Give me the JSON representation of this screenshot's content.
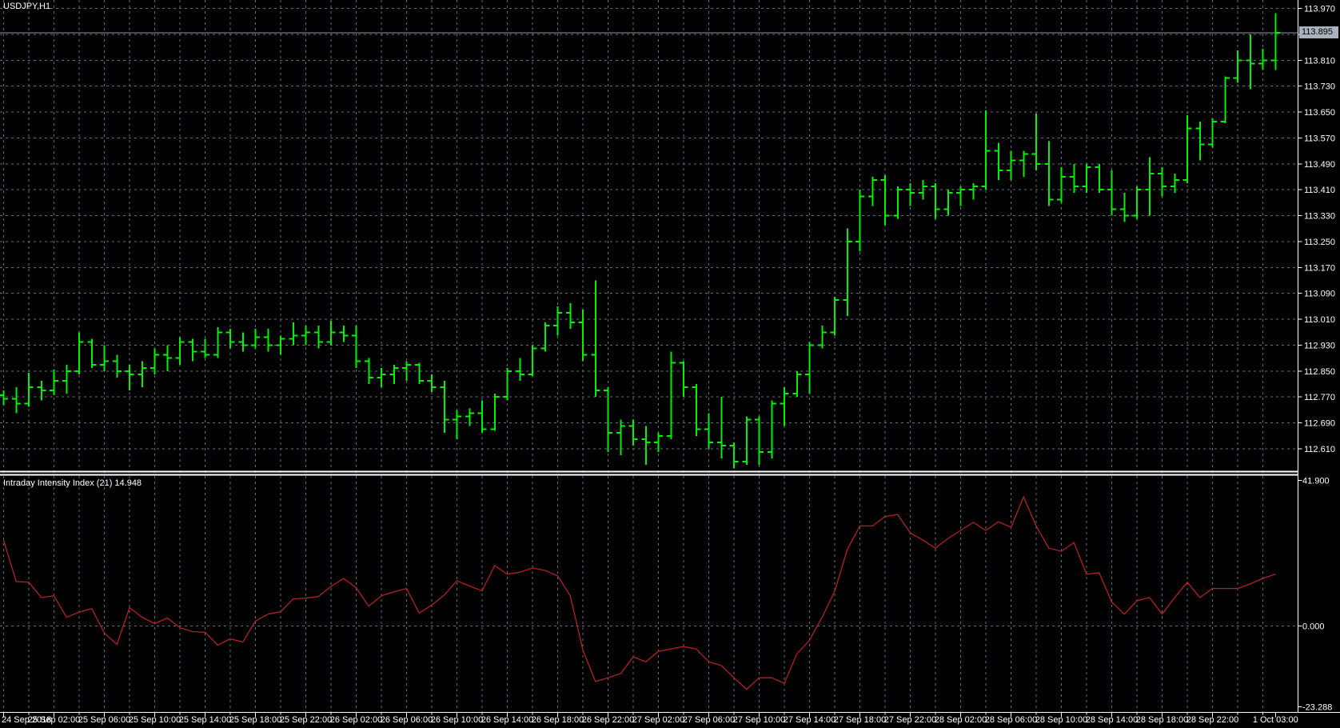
{
  "window": {
    "symbol_label": "USDJPY,H1",
    "indicator_label": "Intraday Intensity Index (21) 14.948"
  },
  "colors": {
    "background": "#000000",
    "grid": "#5f6e7d",
    "bars": "#00f000",
    "indicator_line": "#b22222",
    "axis_line": "#ffffff",
    "axis_text": "#ffffff",
    "bid_line": "#8f99a3",
    "separator": "#ffffff",
    "badge_bg": "#a9b2bd",
    "badge_text": "#000000"
  },
  "chart_data": {
    "type": "ohlc-bars",
    "title": "USDJPY,H1",
    "symbol": "USDJPY",
    "timeframe": "H1",
    "grid": "dashed",
    "price_axis": {
      "bid": "113.895",
      "gridline_step": 0.08,
      "gridlines": [
        113.97,
        113.89,
        113.81,
        113.73,
        113.65,
        113.57,
        113.49,
        113.41,
        113.33,
        113.25,
        113.17,
        113.09,
        113.01,
        112.93,
        112.85,
        112.77,
        112.69,
        112.61
      ]
    },
    "time_axis": {
      "labels": [
        {
          "text": "24 Sep 2018",
          "bar": 0
        },
        {
          "text": "25 Sep 02:00",
          "bar": 4
        },
        {
          "text": "25 Sep 06:00",
          "bar": 8
        },
        {
          "text": "25 Sep 10:00",
          "bar": 12
        },
        {
          "text": "25 Sep 14:00",
          "bar": 16
        },
        {
          "text": "25 Sep 18:00",
          "bar": 20
        },
        {
          "text": "25 Sep 22:00",
          "bar": 24
        },
        {
          "text": "26 Sep 02:00",
          "bar": 28
        },
        {
          "text": "26 Sep 06:00",
          "bar": 32
        },
        {
          "text": "26 Sep 10:00",
          "bar": 36
        },
        {
          "text": "26 Sep 14:00",
          "bar": 40
        },
        {
          "text": "26 Sep 18:00",
          "bar": 44
        },
        {
          "text": "26 Sep 22:00",
          "bar": 48
        },
        {
          "text": "27 Sep 02:00",
          "bar": 52
        },
        {
          "text": "27 Sep 06:00",
          "bar": 56
        },
        {
          "text": "27 Sep 10:00",
          "bar": 60
        },
        {
          "text": "27 Sep 14:00",
          "bar": 64
        },
        {
          "text": "27 Sep 18:00",
          "bar": 68
        },
        {
          "text": "27 Sep 22:00",
          "bar": 72
        },
        {
          "text": "28 Sep 02:00",
          "bar": 76
        },
        {
          "text": "28 Sep 06:00",
          "bar": 80
        },
        {
          "text": "28 Sep 10:00",
          "bar": 84
        },
        {
          "text": "28 Sep 14:00",
          "bar": 88
        },
        {
          "text": "28 Sep 18:00",
          "bar": 92
        },
        {
          "text": "28 Sep 22:00",
          "bar": 96
        },
        {
          "text": "1 Oct 03:00",
          "bar": 101
        }
      ]
    },
    "bars_ohlc": [
      [
        112.775,
        112.79,
        112.745,
        112.765
      ],
      [
        112.765,
        112.8,
        112.72,
        112.75
      ],
      [
        112.75,
        112.845,
        112.74,
        112.8
      ],
      [
        112.8,
        112.82,
        112.76,
        112.79
      ],
      [
        112.79,
        112.855,
        112.775,
        112.82
      ],
      [
        112.82,
        112.87,
        112.78,
        112.85
      ],
      [
        112.85,
        112.97,
        112.84,
        112.94
      ],
      [
        112.94,
        112.95,
        112.86,
        112.87
      ],
      [
        112.87,
        112.93,
        112.85,
        112.88
      ],
      [
        112.88,
        112.9,
        112.83,
        112.85
      ],
      [
        112.85,
        112.87,
        112.79,
        112.84
      ],
      [
        112.84,
        112.88,
        112.8,
        112.86
      ],
      [
        112.86,
        112.92,
        112.84,
        112.9
      ],
      [
        112.9,
        112.93,
        112.85,
        112.89
      ],
      [
        112.89,
        112.955,
        112.87,
        112.94
      ],
      [
        112.94,
        112.95,
        112.88,
        112.91
      ],
      [
        112.91,
        112.95,
        112.89,
        112.9
      ],
      [
        112.9,
        112.985,
        112.89,
        112.97
      ],
      [
        112.97,
        112.98,
        112.92,
        112.94
      ],
      [
        112.94,
        112.97,
        112.91,
        112.93
      ],
      [
        112.93,
        112.98,
        112.92,
        112.955
      ],
      [
        112.955,
        112.98,
        112.91,
        112.93
      ],
      [
        112.93,
        112.96,
        112.9,
        112.95
      ],
      [
        112.95,
        113.0,
        112.93,
        112.96
      ],
      [
        112.96,
        112.99,
        112.93,
        112.97
      ],
      [
        112.97,
        112.99,
        112.92,
        112.94
      ],
      [
        112.94,
        113.005,
        112.93,
        112.97
      ],
      [
        112.97,
        112.99,
        112.94,
        112.96
      ],
      [
        112.96,
        112.99,
        112.86,
        112.88
      ],
      [
        112.88,
        112.89,
        112.81,
        112.83
      ],
      [
        112.83,
        112.86,
        112.8,
        112.84
      ],
      [
        112.84,
        112.87,
        112.81,
        112.86
      ],
      [
        112.86,
        112.88,
        112.82,
        112.87
      ],
      [
        112.87,
        112.875,
        112.81,
        112.82
      ],
      [
        112.82,
        112.84,
        112.785,
        112.8
      ],
      [
        112.8,
        112.82,
        112.66,
        112.7
      ],
      [
        112.7,
        112.73,
        112.64,
        112.71
      ],
      [
        112.71,
        112.735,
        112.68,
        112.72
      ],
      [
        112.72,
        112.76,
        112.66,
        112.67
      ],
      [
        112.67,
        112.78,
        112.665,
        112.77
      ],
      [
        112.77,
        112.86,
        112.76,
        112.85
      ],
      [
        112.85,
        112.89,
        112.82,
        112.84
      ],
      [
        112.84,
        112.93,
        112.835,
        112.92
      ],
      [
        112.92,
        113.0,
        112.91,
        112.99
      ],
      [
        112.99,
        113.05,
        112.96,
        113.03
      ],
      [
        113.03,
        113.06,
        112.98,
        113.0
      ],
      [
        113.0,
        113.04,
        112.88,
        112.9
      ],
      [
        112.9,
        113.13,
        112.77,
        112.79
      ],
      [
        112.79,
        112.8,
        112.6,
        112.66
      ],
      [
        112.66,
        112.7,
        112.59,
        112.68
      ],
      [
        112.68,
        112.7,
        112.62,
        112.64
      ],
      [
        112.64,
        112.68,
        112.56,
        112.63
      ],
      [
        112.63,
        112.66,
        112.6,
        112.65
      ],
      [
        112.65,
        112.91,
        112.64,
        112.875
      ],
      [
        112.875,
        112.88,
        112.77,
        112.8
      ],
      [
        112.8,
        112.81,
        112.65,
        112.67
      ],
      [
        112.67,
        112.72,
        112.61,
        112.63
      ],
      [
        112.63,
        112.77,
        112.58,
        112.62
      ],
      [
        112.62,
        112.63,
        112.55,
        112.57
      ],
      [
        112.57,
        112.71,
        112.56,
        112.7
      ],
      [
        112.7,
        112.71,
        112.56,
        112.6
      ],
      [
        112.6,
        112.76,
        112.58,
        112.75
      ],
      [
        112.75,
        112.8,
        112.68,
        112.78
      ],
      [
        112.78,
        112.85,
        112.77,
        112.84
      ],
      [
        112.84,
        112.94,
        112.78,
        112.93
      ],
      [
        112.93,
        112.99,
        112.92,
        112.97
      ],
      [
        112.97,
        113.08,
        112.96,
        113.07
      ],
      [
        113.07,
        113.29,
        113.02,
        113.25
      ],
      [
        113.25,
        113.41,
        113.22,
        113.39
      ],
      [
        113.39,
        113.45,
        113.36,
        113.44
      ],
      [
        113.44,
        113.455,
        113.3,
        113.33
      ],
      [
        113.33,
        113.42,
        113.32,
        113.41
      ],
      [
        113.41,
        113.43,
        113.36,
        113.4
      ],
      [
        113.4,
        113.44,
        113.38,
        113.42
      ],
      [
        113.42,
        113.43,
        113.32,
        113.35
      ],
      [
        113.35,
        113.41,
        113.33,
        113.4
      ],
      [
        113.4,
        113.42,
        113.36,
        113.41
      ],
      [
        113.41,
        113.43,
        113.38,
        113.42
      ],
      [
        113.42,
        113.655,
        113.41,
        113.53
      ],
      [
        113.53,
        113.555,
        113.44,
        113.47
      ],
      [
        113.47,
        113.53,
        113.44,
        113.5
      ],
      [
        113.5,
        113.53,
        113.45,
        113.52
      ],
      [
        113.52,
        113.645,
        113.47,
        113.49
      ],
      [
        113.49,
        113.56,
        113.36,
        113.38
      ],
      [
        113.38,
        113.48,
        113.37,
        113.45
      ],
      [
        113.45,
        113.49,
        113.4,
        113.42
      ],
      [
        113.42,
        113.49,
        113.4,
        113.48
      ],
      [
        113.48,
        113.49,
        113.4,
        113.41
      ],
      [
        113.41,
        113.47,
        113.33,
        113.35
      ],
      [
        113.35,
        113.4,
        113.31,
        113.33
      ],
      [
        113.33,
        113.42,
        113.32,
        113.41
      ],
      [
        113.41,
        113.51,
        113.33,
        113.46
      ],
      [
        113.46,
        113.48,
        113.39,
        113.42
      ],
      [
        113.42,
        113.46,
        113.4,
        113.44
      ],
      [
        113.44,
        113.64,
        113.43,
        113.6
      ],
      [
        113.6,
        113.62,
        113.5,
        113.55
      ],
      [
        113.55,
        113.63,
        113.54,
        113.62
      ],
      [
        113.62,
        113.76,
        113.615,
        113.755
      ],
      [
        113.755,
        113.84,
        113.74,
        113.81
      ],
      [
        113.81,
        113.89,
        113.72,
        113.8
      ],
      [
        113.8,
        113.845,
        113.78,
        113.81
      ],
      [
        113.81,
        113.955,
        113.78,
        113.895
      ]
    ],
    "indicator": {
      "name": "Intraday Intensity Index",
      "period": 21,
      "current_value": "14.948",
      "axis_labels": [
        {
          "text": "41.900",
          "value": 41.9
        },
        {
          "text": "0.000",
          "value": 0.0
        },
        {
          "text": "-23.288",
          "value": -23.288
        }
      ],
      "values": [
        24.7,
        12.8,
        12.6,
        8.2,
        8.7,
        2.5,
        4.0,
        5.0,
        -2.0,
        -5.3,
        5.3,
        2.5,
        0.7,
        2.3,
        -0.5,
        -1.6,
        -1.8,
        -5.5,
        -3.7,
        -4.6,
        1.4,
        3.4,
        4.1,
        7.8,
        8.0,
        8.5,
        11.4,
        13.7,
        11.0,
        5.7,
        8.7,
        9.8,
        10.8,
        3.7,
        6.0,
        8.9,
        13.0,
        11.5,
        10.1,
        17.4,
        14.9,
        15.5,
        16.7,
        16.0,
        14.4,
        8.7,
        -6.9,
        -16.0,
        -14.9,
        -13.7,
        -8.9,
        -10.3,
        -7.3,
        -6.6,
        -5.9,
        -6.6,
        -10.3,
        -11.4,
        -14.9,
        -18.2,
        -14.9,
        -14.9,
        -16.5,
        -8.0,
        -4.1,
        2.5,
        10.0,
        22.0,
        28.8,
        28.8,
        31.5,
        32.1,
        26.8,
        24.7,
        22.4,
        25.2,
        27.5,
        29.8,
        27.5,
        30.0,
        28.4,
        37.1,
        28.8,
        22.4,
        21.5,
        24.0,
        14.9,
        15.3,
        6.9,
        3.4,
        7.3,
        8.2,
        3.4,
        8.2,
        12.6,
        8.2,
        10.8,
        10.8,
        10.8,
        12.1,
        13.7,
        14.948
      ]
    }
  }
}
